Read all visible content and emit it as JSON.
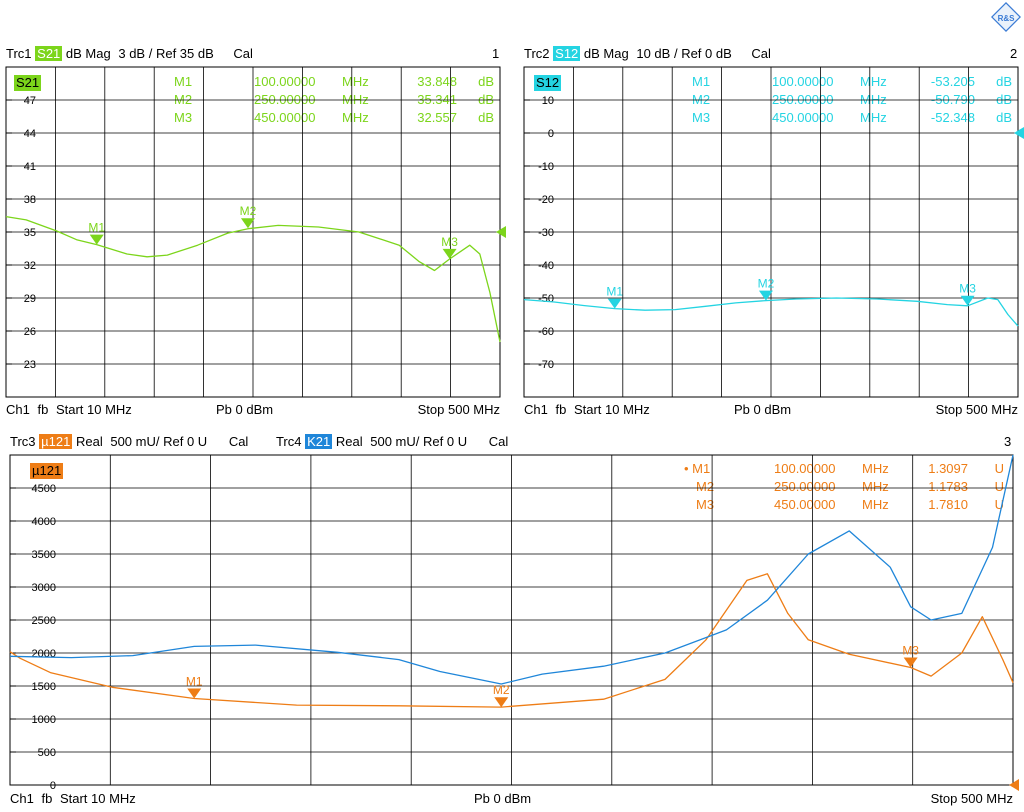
{
  "logo": "R&S",
  "colors": {
    "s21": "#7cd51b",
    "s12": "#24d4e2",
    "mu121": "#ee7d16",
    "k21": "#1f86d9",
    "grid": "#000000",
    "bg": "#ffffff"
  },
  "panels": [
    {
      "id": "p1",
      "header": {
        "trace": "Trc1",
        "tag": "S21",
        "format": "dB Mag",
        "scale": "3 dB /",
        "ref": "Ref 35 dB",
        "cal": "Cal",
        "num": "1"
      },
      "footer": {
        "ch": "Ch1",
        "fb": "fb",
        "start": "Start  10 MHz",
        "pb": "Pb   0 dBm",
        "stop": "Stop  500 MHz"
      },
      "trace_label": "S21",
      "markers": [
        {
          "name": "M1",
          "freq": "100.00000",
          "unit": "MHz",
          "value": "33.848",
          "vunit": "dB"
        },
        {
          "name": "M2",
          "freq": "250.00000",
          "unit": "MHz",
          "value": "35.341",
          "vunit": "dB"
        },
        {
          "name": "M3",
          "freq": "450.00000",
          "unit": "MHz",
          "value": "32.557",
          "vunit": "dB"
        }
      ]
    },
    {
      "id": "p2",
      "header": {
        "trace": "Trc2",
        "tag": "S12",
        "format": "dB Mag",
        "scale": "10 dB /",
        "ref": "Ref 0 dB",
        "cal": "Cal",
        "num": "2"
      },
      "footer": {
        "ch": "Ch1",
        "fb": "fb",
        "start": "Start  10 MHz",
        "pb": "Pb   0 dBm",
        "stop": "Stop  500 MHz"
      },
      "trace_label": "S12",
      "markers": [
        {
          "name": "M1",
          "freq": "100.00000",
          "unit": "MHz",
          "value": "-53.205",
          "vunit": "dB"
        },
        {
          "name": "M2",
          "freq": "250.00000",
          "unit": "MHz",
          "value": "-50.790",
          "vunit": "dB"
        },
        {
          "name": "M3",
          "freq": "450.00000",
          "unit": "MHz",
          "value": "-52.348",
          "vunit": "dB"
        }
      ]
    },
    {
      "id": "p3",
      "header": {
        "trace": "Trc3",
        "tag": "µ121",
        "format": "Real",
        "scale": "500 mU/",
        "ref": "Ref 0 U",
        "cal": "Cal",
        "trace2": "Trc4",
        "tag2": "K21",
        "format2": "Real",
        "scale2": "500 mU/",
        "ref2": "Ref 0 U",
        "cal2": "Cal",
        "num": "3"
      },
      "footer": {
        "ch": "Ch1",
        "fb": "fb",
        "start": "Start  10 MHz",
        "pb": "Pb   0 dBm",
        "stop": "Stop  500 MHz"
      },
      "trace_label": "µ121",
      "markers": [
        {
          "name": "• M1",
          "freq": "100.00000",
          "unit": "MHz",
          "value": "1.3097",
          "vunit": "U"
        },
        {
          "name": "M2",
          "freq": "250.00000",
          "unit": "MHz",
          "value": "1.1783",
          "vunit": "U"
        },
        {
          "name": "M3",
          "freq": "450.00000",
          "unit": "MHz",
          "value": "1.7810",
          "vunit": "U"
        }
      ]
    }
  ],
  "chart_data": [
    {
      "type": "line",
      "panel": "p1",
      "xlim": [
        10,
        500
      ],
      "ylim": [
        20,
        50
      ],
      "y_ticks": [
        47,
        44,
        41,
        38,
        35,
        32,
        29,
        26,
        23
      ],
      "ref_value": 35,
      "grid": true,
      "series": [
        {
          "name": "S21",
          "color": "#7cd51b",
          "x": [
            10,
            30,
            60,
            80,
            100,
            130,
            150,
            170,
            200,
            230,
            250,
            280,
            320,
            360,
            400,
            420,
            435,
            450,
            470,
            480,
            490,
            500
          ],
          "y": [
            36.4,
            36.1,
            35.1,
            34.3,
            33.85,
            33.0,
            32.75,
            32.9,
            33.8,
            34.9,
            35.3,
            35.6,
            35.45,
            35.0,
            33.8,
            32.3,
            31.5,
            32.55,
            33.8,
            33.0,
            29.5,
            25.0
          ]
        }
      ],
      "markers": [
        {
          "label": "M1",
          "x": 100,
          "y": 33.848
        },
        {
          "label": "M2",
          "x": 250,
          "y": 35.341
        },
        {
          "label": "M3",
          "x": 450,
          "y": 32.557
        }
      ]
    },
    {
      "type": "line",
      "panel": "p2",
      "xlim": [
        10,
        500
      ],
      "ylim": [
        -80,
        20
      ],
      "y_ticks": [
        10,
        0,
        -10,
        -20,
        -30,
        -40,
        -50,
        -60,
        -70
      ],
      "ref_value": 0,
      "grid": true,
      "series": [
        {
          "name": "S12",
          "color": "#24d4e2",
          "x": [
            10,
            40,
            70,
            100,
            130,
            160,
            190,
            220,
            250,
            280,
            320,
            360,
            400,
            430,
            450,
            470,
            480,
            490,
            500
          ],
          "y": [
            -50.5,
            -51.2,
            -52.3,
            -53.2,
            -53.7,
            -53.5,
            -52.5,
            -51.5,
            -50.8,
            -50.3,
            -50.0,
            -50.3,
            -51.0,
            -52.0,
            -52.35,
            -50.0,
            -50.5,
            -55.0,
            -58.5
          ]
        }
      ],
      "markers": [
        {
          "label": "M1",
          "x": 100,
          "y": -53.205
        },
        {
          "label": "M2",
          "x": 250,
          "y": -50.79
        },
        {
          "label": "M3",
          "x": 450,
          "y": -52.348
        }
      ]
    },
    {
      "type": "line",
      "panel": "p3",
      "xlim": [
        10,
        500
      ],
      "ylim": [
        0,
        5000
      ],
      "y_ticks": [
        4500,
        4000,
        3500,
        3000,
        2500,
        2000,
        1500,
        1000,
        500,
        0
      ],
      "ref_value": 0,
      "grid": true,
      "series": [
        {
          "name": "µ121",
          "color": "#ee7d16",
          "x": [
            10,
            15,
            30,
            60,
            100,
            150,
            200,
            250,
            300,
            330,
            350,
            370,
            380,
            390,
            400,
            420,
            450,
            460,
            475,
            485,
            495,
            500
          ],
          "y": [
            2020,
            1920,
            1700,
            1480,
            1310,
            1210,
            1200,
            1180,
            1300,
            1600,
            2200,
            3100,
            3200,
            2600,
            2200,
            1980,
            1780,
            1650,
            2000,
            2550,
            1900,
            1550
          ]
        },
        {
          "name": "K21",
          "color": "#1f86d9",
          "x": [
            10,
            40,
            70,
            100,
            130,
            170,
            200,
            220,
            250,
            270,
            300,
            330,
            360,
            380,
            400,
            420,
            440,
            450,
            460,
            475,
            490,
            500
          ],
          "y": [
            1950,
            1930,
            1960,
            2100,
            2120,
            2010,
            1900,
            1720,
            1530,
            1680,
            1800,
            2000,
            2350,
            2800,
            3500,
            3850,
            3300,
            2700,
            2500,
            2600,
            3600,
            5000
          ]
        }
      ],
      "markers": [
        {
          "label": "M1",
          "x": 100,
          "y": 1.3097
        },
        {
          "label": "M2",
          "x": 250,
          "y": 1.1783
        },
        {
          "label": "M3",
          "x": 450,
          "y": 1.781
        }
      ]
    }
  ]
}
